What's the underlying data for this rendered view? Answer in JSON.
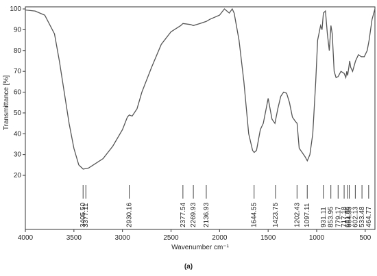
{
  "chart_data": {
    "type": "line",
    "x_label": "Wavenumber cm⁻¹",
    "y_label": "Transmittance [%]",
    "caption": "(a)",
    "color": "#555555",
    "xlim": [
      4000,
      400
    ],
    "xticks": [
      4000,
      3500,
      3000,
      2500,
      2000,
      1500,
      1000,
      500
    ],
    "ylim": [
      -6,
      101
    ],
    "yticks": [
      20,
      30,
      40,
      50,
      60,
      70,
      80,
      90,
      100
    ],
    "x": [
      4000,
      3900,
      3800,
      3700,
      3650,
      3600,
      3550,
      3500,
      3450,
      3405,
      3350,
      3300,
      3200,
      3100,
      3000,
      2950,
      2930,
      2900,
      2850,
      2800,
      2700,
      2600,
      2500,
      2400,
      2377,
      2300,
      2270,
      2200,
      2137,
      2100,
      2000,
      1950,
      1900,
      1870,
      1850,
      1800,
      1750,
      1700,
      1660,
      1644,
      1620,
      1580,
      1550,
      1520,
      1500,
      1480,
      1460,
      1430,
      1400,
      1370,
      1340,
      1310,
      1280,
      1250,
      1220,
      1202,
      1180,
      1150,
      1120,
      1097,
      1070,
      1040,
      1010,
      990,
      960,
      945,
      931,
      910,
      890,
      870,
      853,
      840,
      820,
      800,
      779,
      750,
      717,
      700,
      690,
      681,
      660,
      650,
      630,
      600,
      570,
      540,
      510,
      480,
      460,
      430,
      400
    ],
    "values": [
      99.5,
      99,
      97,
      88,
      75,
      60,
      45,
      33,
      25,
      23,
      23.5,
      25,
      28,
      34,
      42,
      48,
      49,
      48.5,
      52,
      60,
      72,
      83,
      89,
      92,
      93,
      92.5,
      92,
      93,
      94,
      95,
      97,
      100,
      98,
      100,
      98,
      85,
      65,
      40,
      32,
      31,
      32,
      42,
      45,
      52,
      57,
      52,
      47,
      45,
      52,
      58,
      60,
      59.5,
      55,
      48,
      46,
      45,
      33,
      31,
      29,
      27,
      30,
      40,
      65,
      85,
      92,
      90,
      98,
      99,
      88,
      80,
      92,
      88,
      70,
      67,
      67.5,
      70,
      69,
      67,
      70,
      68,
      75,
      72,
      70,
      75,
      78,
      77,
      77,
      80,
      85,
      95,
      100
    ],
    "peaks": {
      "values": [
        3405.5,
        3377.11,
        2930.16,
        2377.54,
        2269.93,
        2136.93,
        1644.55,
        1423.75,
        1202.43,
        1097.11,
        931.11,
        853.95,
        779.17,
        717.18,
        681.86,
        664.35,
        602.13,
        533.48,
        464.77
      ],
      "value_labels": [
        "3405.50",
        "3377.11",
        "2930.16",
        "2377.54",
        "2269.93",
        "2136.93",
        "1644.55",
        "1423.75",
        "1202.43",
        "1097.11",
        "931.11",
        "853.95",
        "779.17",
        "717.18",
        "681.86",
        "664.35",
        "602.13",
        "533.48",
        "464.77"
      ]
    }
  }
}
